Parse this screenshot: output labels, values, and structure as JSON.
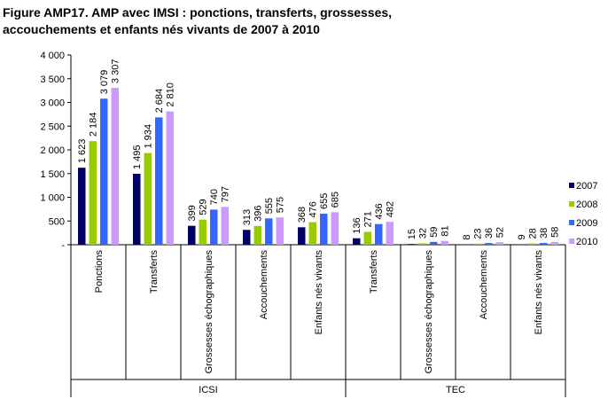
{
  "chart_data": {
    "type": "bar",
    "title": "Figure AMP17. AMP avec IMSI : ponctions, transferts, grossesses,\naccouchements et enfants nés vivants de 2007 à 2010",
    "xlabel": "",
    "ylabel": "",
    "ylim": [
      0,
      4000
    ],
    "yticks": [
      "-",
      "500",
      "1 000",
      "1 500",
      "2 000",
      "2 500",
      "3 000",
      "3 500",
      "4 000"
    ],
    "grid": false,
    "legend_position": "right",
    "groups": [
      {
        "label": "ICSI",
        "categories": [
          "Ponctions",
          "Transferts",
          "Grossesses échographiques",
          "Accouchements",
          "Enfants nés vivants"
        ]
      },
      {
        "label": "TEC",
        "categories": [
          "Transferts",
          "Grossesses échographiques",
          "Accouchements",
          "Enfants nés vivants"
        ]
      }
    ],
    "categories": [
      "Ponctions",
      "Transferts",
      "Grossesses échographiques",
      "Accouchements",
      "Enfants nés vivants",
      "Transferts",
      "Grossesses échographiques",
      "Accouchements",
      "Enfants nés vivants"
    ],
    "series": [
      {
        "name": "2007",
        "color": "#000066",
        "values": [
          1623,
          1495,
          399,
          313,
          368,
          136,
          15,
          8,
          9
        ],
        "labels": [
          "1 623",
          "1 495",
          "399",
          "313",
          "368",
          "136",
          "15",
          "8",
          "9"
        ]
      },
      {
        "name": "2008",
        "color": "#99CC00",
        "values": [
          2184,
          1934,
          529,
          396,
          476,
          271,
          32,
          23,
          28
        ],
        "labels": [
          "2 184",
          "1 934",
          "529",
          "396",
          "476",
          "271",
          "32",
          "23",
          "28"
        ]
      },
      {
        "name": "2009",
        "color": "#3366FF",
        "values": [
          3079,
          2684,
          740,
          555,
          655,
          436,
          59,
          36,
          38
        ],
        "labels": [
          "3 079",
          "2 684",
          "740",
          "555",
          "655",
          "436",
          "59",
          "36",
          "38"
        ]
      },
      {
        "name": "2010",
        "color": "#CC99FF",
        "values": [
          3307,
          2810,
          797,
          575,
          685,
          482,
          81,
          52,
          58
        ],
        "labels": [
          "3 307",
          "2 810",
          "797",
          "575",
          "685",
          "482",
          "81",
          "52",
          "58"
        ]
      }
    ]
  }
}
